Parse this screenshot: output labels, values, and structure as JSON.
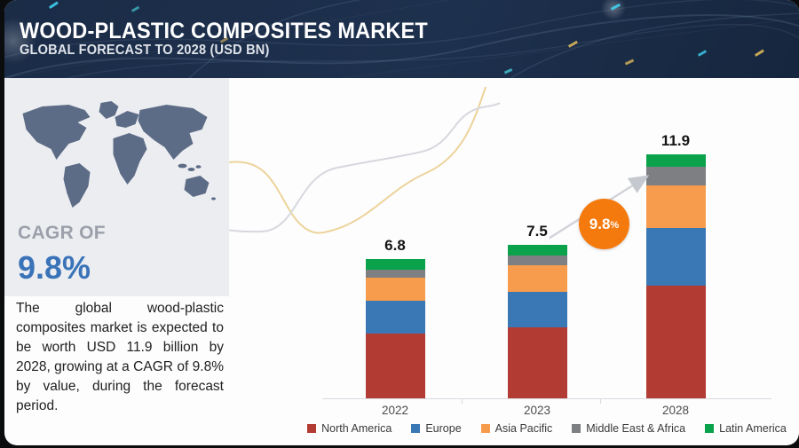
{
  "header": {
    "title": "WOOD-PLASTIC COMPOSITES MARKET",
    "subtitle": "GLOBAL FORECAST TO 2028 (USD BN)"
  },
  "sidebar": {
    "cagr_label": "CAGR OF",
    "cagr_value": "9.8%",
    "description": "The global wood-plastic composites market is expected to be worth USD 11.9 billion by 2028, growing at a CAGR of 9.8% by value, during the forecast period.",
    "map_icon": "world-map"
  },
  "badge": {
    "value": "9.8",
    "percent": "%"
  },
  "chart_data": {
    "type": "bar",
    "stacked": true,
    "title": "Wood-Plastic Composites Market, Global Forecast to 2028 (USD BN)",
    "categories": [
      "2022",
      "2023",
      "2028"
    ],
    "series": [
      {
        "name": "North America",
        "color": "#b23b33",
        "values": [
          3.2,
          3.5,
          5.5
        ]
      },
      {
        "name": "Europe",
        "color": "#3a77b5",
        "values": [
          1.6,
          1.7,
          2.8
        ]
      },
      {
        "name": "Asia Pacific",
        "color": "#f79c4c",
        "values": [
          1.1,
          1.3,
          2.1
        ]
      },
      {
        "name": "Middle East & Africa",
        "color": "#7d7f82",
        "values": [
          0.4,
          0.5,
          0.9
        ]
      },
      {
        "name": "Latin America",
        "color": "#0aa24b",
        "values": [
          0.5,
          0.5,
          0.6
        ]
      }
    ],
    "totals": [
      6.8,
      7.5,
      11.9
    ],
    "total_labels": [
      "6.8",
      "7.5",
      "11.9"
    ],
    "xlabel": "",
    "ylabel": "",
    "ylim": [
      0,
      12
    ],
    "grid": false,
    "legend_position": "bottom",
    "cagr_annotation": "9.8%"
  },
  "colors": {
    "header_bg": "#1c2e4b",
    "sidebar_bg": "#ecedf1",
    "badge_orange": "#f57a0d",
    "cagr_blue": "#3a73b8",
    "axis": "#d9dade",
    "wave_yellow": "#ecd39a",
    "wave_gray": "#d6d8dd"
  }
}
